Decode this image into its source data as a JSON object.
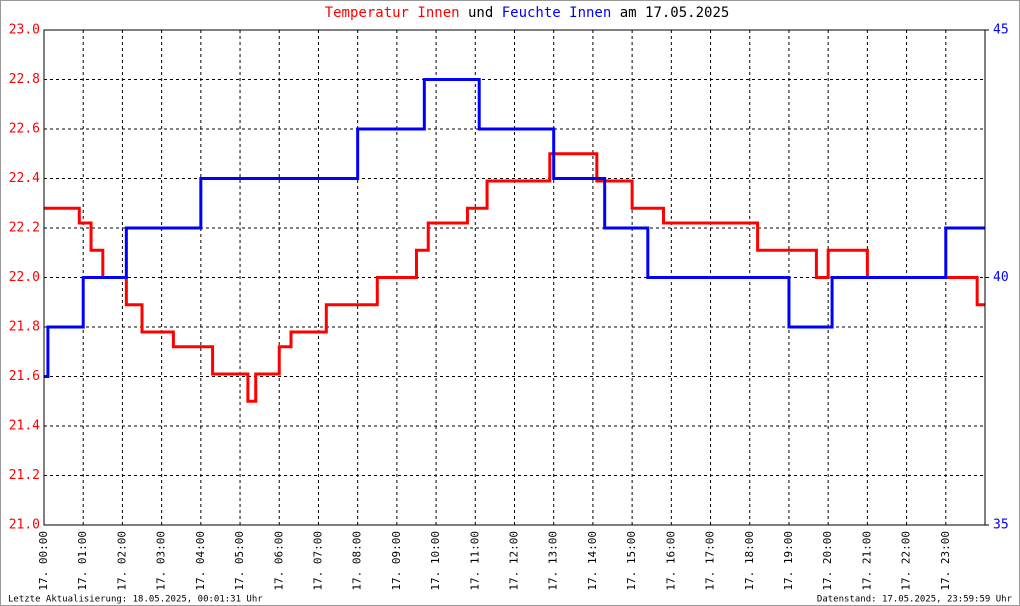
{
  "chart_data": {
    "type": "line",
    "step": "post",
    "title_joiner": "und",
    "title_suffix": "am 17.05.2025",
    "footer_left": "Letzte Aktualisierung: 18.05.2025, 00:01:31 Uhr",
    "footer_right": "Datenstand: 17.05.2025, 23:59:59 Uhr",
    "x": [
      0,
      0.1,
      0.9,
      1.0,
      1.2,
      1.5,
      2.1,
      2.5,
      3.3,
      4.0,
      4.3,
      5.2,
      5.4,
      6.0,
      6.3,
      7.2,
      8.0,
      8.5,
      9.5,
      9.7,
      9.8,
      10.8,
      11.1,
      11.3,
      12.9,
      13.0,
      14.1,
      14.3,
      15.0,
      15.4,
      15.8,
      18.2,
      19.0,
      19.7,
      20.0,
      20.1,
      21.0,
      23.0,
      23.8,
      24
    ],
    "series": [
      {
        "name": "Temperatur Innen",
        "color": "#ff0000",
        "values": [
          22.28,
          22.28,
          22.22,
          22.22,
          22.11,
          22.0,
          21.89,
          21.78,
          21.72,
          21.72,
          21.61,
          21.5,
          21.61,
          21.72,
          21.78,
          21.89,
          21.89,
          22.0,
          22.11,
          22.11,
          22.22,
          22.28,
          22.28,
          22.39,
          22.5,
          22.5,
          22.39,
          22.39,
          22.28,
          22.28,
          22.22,
          22.11,
          22.11,
          22.0,
          22.11,
          22.11,
          22.0,
          22.0,
          21.89,
          21.89
        ]
      },
      {
        "name": "Feuchte Innen",
        "color": "#0000ff",
        "axis": "y2",
        "values": [
          38,
          39,
          39,
          40,
          40,
          40,
          41,
          41,
          41,
          42,
          42,
          42,
          42,
          42,
          42,
          42,
          43,
          43,
          43,
          44,
          44,
          44,
          43,
          43,
          43,
          42,
          42,
          41,
          41,
          40,
          40,
          40,
          39,
          39,
          39,
          40,
          40,
          41,
          41,
          41
        ]
      }
    ],
    "title_color": "#000000",
    "xlim": [
      0,
      24
    ],
    "xticks": [
      {
        "value": 0,
        "label": "17. 00:00"
      },
      {
        "value": 1,
        "label": "17. 01:00"
      },
      {
        "value": 2,
        "label": "17. 02:00"
      },
      {
        "value": 3,
        "label": "17. 03:00"
      },
      {
        "value": 4,
        "label": "17. 04:00"
      },
      {
        "value": 5,
        "label": "17. 05:00"
      },
      {
        "value": 6,
        "label": "17. 06:00"
      },
      {
        "value": 7,
        "label": "17. 07:00"
      },
      {
        "value": 8,
        "label": "17. 08:00"
      },
      {
        "value": 9,
        "label": "17. 09:00"
      },
      {
        "value": 10,
        "label": "17. 10:00"
      },
      {
        "value": 11,
        "label": "17. 11:00"
      },
      {
        "value": 12,
        "label": "17. 12:00"
      },
      {
        "value": 13,
        "label": "17. 13:00"
      },
      {
        "value": 14,
        "label": "17. 14:00"
      },
      {
        "value": 15,
        "label": "17. 15:00"
      },
      {
        "value": 16,
        "label": "17. 16:00"
      },
      {
        "value": 17,
        "label": "17. 17:00"
      },
      {
        "value": 18,
        "label": "17. 18:00"
      },
      {
        "value": 19,
        "label": "17. 19:00"
      },
      {
        "value": 20,
        "label": "17. 20:00"
      },
      {
        "value": 21,
        "label": "17. 21:00"
      },
      {
        "value": 22,
        "label": "17. 22:00"
      },
      {
        "value": 23,
        "label": "17. 23:00"
      }
    ],
    "ylim": [
      21.0,
      23.0
    ],
    "yticks": [
      {
        "value": 21.0,
        "label": "21.0"
      },
      {
        "value": 21.2,
        "label": "21.2"
      },
      {
        "value": 21.4,
        "label": "21.4"
      },
      {
        "value": 21.6,
        "label": "21.6"
      },
      {
        "value": 21.8,
        "label": "21.8"
      },
      {
        "value": 22.0,
        "label": "22.0"
      },
      {
        "value": 22.2,
        "label": "22.2"
      },
      {
        "value": 22.4,
        "label": "22.4"
      },
      {
        "value": 22.6,
        "label": "22.6"
      },
      {
        "value": 22.8,
        "label": "22.8"
      },
      {
        "value": 23.0,
        "label": "23.0"
      }
    ],
    "y2lim": [
      35,
      45
    ],
    "y2ticks": [
      35,
      40,
      45
    ],
    "grid": true
  }
}
